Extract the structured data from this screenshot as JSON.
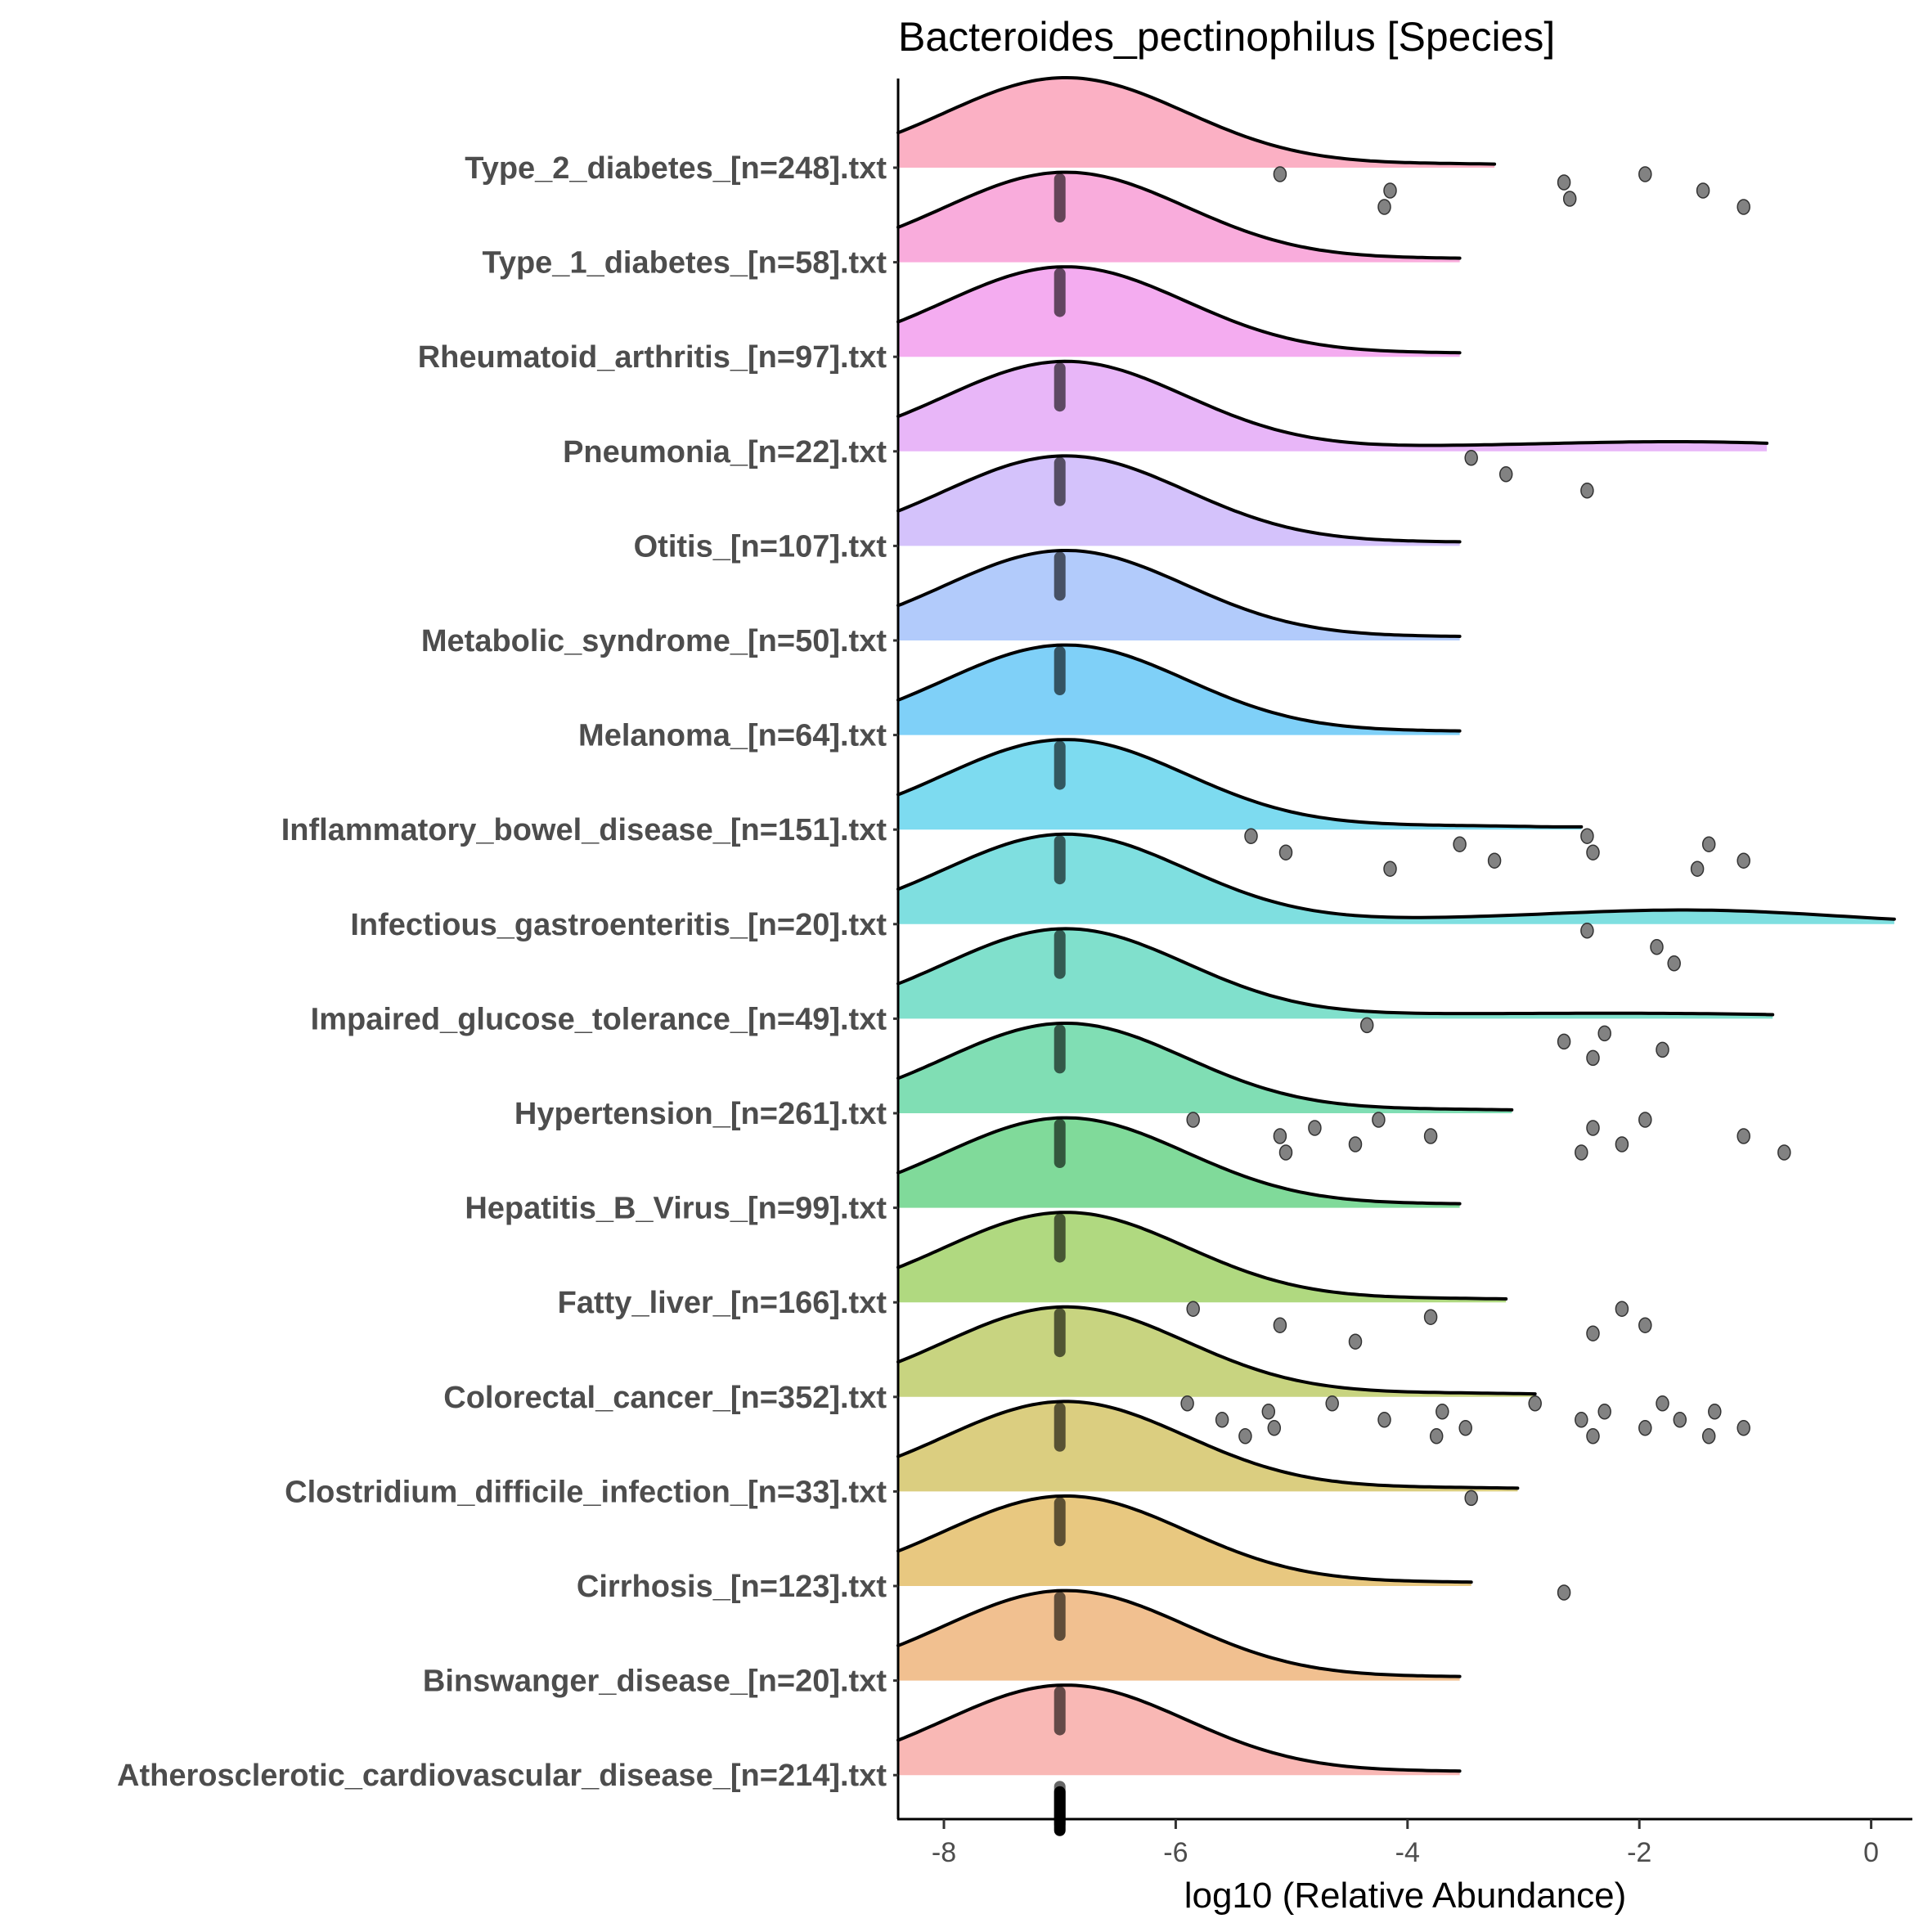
{
  "chart_data": {
    "type": "ridgeline",
    "title": "Bacteroides_pectinophilus [Species]",
    "xlabel": "log10 (Relative Abundance)",
    "ylabel": "",
    "xlim": [
      -8.4,
      0.25
    ],
    "xticks": [
      -8,
      -6,
      -4,
      -2,
      0
    ],
    "xtick_labels": [
      "-8",
      "-6",
      "-4",
      "-2",
      "0"
    ],
    "grid": false,
    "legend": "none",
    "median_marker": -7,
    "series": [
      {
        "name": "Type_2_diabetes_[n=248].txt",
        "color": "#fbb0c4",
        "tail_end": -3.25,
        "tail_bump": 0,
        "outliers": [
          -5.1,
          -4.15,
          -4.2,
          -2.65,
          -2.6,
          -1.95,
          -1.45,
          -1.1
        ]
      },
      {
        "name": "Type_1_diabetes_[n=58].txt",
        "color": "#f9acdc",
        "tail_end": -3.55,
        "tail_bump": 0,
        "outliers": []
      },
      {
        "name": "Rheumatoid_arthritis_[n=97].txt",
        "color": "#f4acf0",
        "tail_end": -3.55,
        "tail_bump": 0,
        "outliers": []
      },
      {
        "name": "Pneumonia_[n=22].txt",
        "color": "#e8b6f8",
        "tail_end": -0.9,
        "tail_bump": 0.1,
        "outliers": [
          -3.45,
          -3.15,
          -2.45
        ]
      },
      {
        "name": "Otitis_[n=107].txt",
        "color": "#d4c2fb",
        "tail_end": -3.55,
        "tail_bump": 0,
        "outliers": []
      },
      {
        "name": "Metabolic_syndrome_[n=50].txt",
        "color": "#b2cbfb",
        "tail_end": -3.55,
        "tail_bump": 0,
        "outliers": []
      },
      {
        "name": "Melanoma_[n=64].txt",
        "color": "#7fd0f8",
        "tail_end": -3.55,
        "tail_bump": 0,
        "outliers": []
      },
      {
        "name": "Inflammatory_bowel_disease_[n=151].txt",
        "color": "#7ddbf0",
        "tail_end": -2.5,
        "tail_bump": 0,
        "outliers": [
          -5.35,
          -5.05,
          -4.15,
          -3.55,
          -3.25,
          -2.45,
          -2.4,
          -1.5,
          -1.4,
          -1.1
        ]
      },
      {
        "name": "Infectious_gastroenteritis_[n=20].txt",
        "color": "#7fdfe0",
        "tail_end": 0.2,
        "tail_bump": 0.15,
        "outliers": [
          -2.45,
          -1.85,
          -1.7
        ]
      },
      {
        "name": "Impaired_glucose_tolerance_[n=49].txt",
        "color": "#80e0cc",
        "tail_end": -0.85,
        "tail_bump": 0.05,
        "outliers": [
          -4.35,
          -2.65,
          -2.4,
          -2.3,
          -1.8
        ]
      },
      {
        "name": "Hypertension_[n=261].txt",
        "color": "#80deb4",
        "tail_end": -3.1,
        "tail_bump": 0,
        "outliers": [
          -5.85,
          -5.1,
          -5.05,
          -4.8,
          -4.45,
          -4.25,
          -3.8,
          -2.5,
          -2.4,
          -2.15,
          -1.95,
          -1.1,
          -0.75
        ]
      },
      {
        "name": "Hepatitis_B_Virus_[n=99].txt",
        "color": "#80da9a",
        "tail_end": -3.55,
        "tail_bump": 0,
        "outliers": []
      },
      {
        "name": "Fatty_liver_[n=166].txt",
        "color": "#b0d980",
        "tail_end": -3.15,
        "tail_bump": 0,
        "outliers": [
          -5.85,
          -5.1,
          -4.45,
          -3.8,
          -2.4,
          -2.15,
          -1.95
        ]
      },
      {
        "name": "Colorectal_cancer_[n=352].txt",
        "color": "#c8d480",
        "tail_end": -2.9,
        "tail_bump": 0,
        "outliers": [
          -5.9,
          -5.6,
          -5.4,
          -5.2,
          -5.15,
          -4.65,
          -4.2,
          -3.75,
          -3.7,
          -3.5,
          -2.9,
          -2.5,
          -2.4,
          -2.3,
          -1.95,
          -1.8,
          -1.65,
          -1.4,
          -1.35,
          -1.1
        ]
      },
      {
        "name": "Clostridium_difficile_infection_[n=33].txt",
        "color": "#dbce80",
        "tail_end": -3.05,
        "tail_bump": 0,
        "outliers": [
          -3.45
        ]
      },
      {
        "name": "Cirrhosis_[n=123].txt",
        "color": "#e8c880",
        "tail_end": -3.45,
        "tail_bump": 0,
        "outliers": [
          -2.65
        ]
      },
      {
        "name": "Binswanger_disease_[n=20].txt",
        "color": "#f1c090",
        "tail_end": -3.55,
        "tail_bump": 0,
        "outliers": []
      },
      {
        "name": "Atherosclerotic_cardiovascular_disease_[n=214].txt",
        "color": "#f9b8b5",
        "tail_end": -3.55,
        "tail_bump": 0,
        "outliers": []
      }
    ]
  }
}
